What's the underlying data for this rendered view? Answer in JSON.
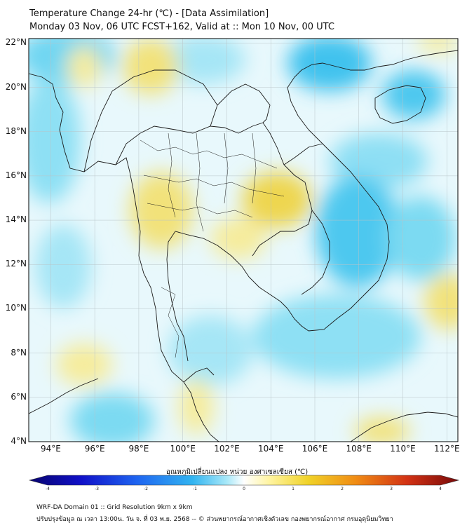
{
  "title_line1": "Temperature Change 24-hr (℃) - [Data Assimilation]",
  "title_line2": "Monday 03 Nov, 06 UTC FCST+162, Valid at :: Mon 10 Nov, 00 UTC",
  "map": {
    "lat_labels": [
      "22°N",
      "20°N",
      "18°N",
      "16°N",
      "14°N",
      "12°N",
      "10°N",
      "8°N",
      "6°N",
      "4°N"
    ],
    "lon_labels": [
      "94°E",
      "96°E",
      "98°E",
      "100°E",
      "102°E",
      "104°E",
      "106°E",
      "108°E",
      "110°E",
      "112°E"
    ],
    "extent": {
      "lon_min": 93.0,
      "lon_max": 112.5,
      "lat_min": 4.0,
      "lat_max": 22.2
    }
  },
  "colorbar": {
    "label": "อุณหภูมิเปลี่ยนแปลง หน่วย องศาเซลเซียส (℃)",
    "ticks": [
      "-4",
      "-3",
      "-2",
      "-1",
      "0",
      "1",
      "2",
      "3",
      "4"
    ],
    "range": [
      -4,
      4
    ],
    "colors": [
      "#08046e",
      "#1010c8",
      "#1e64f0",
      "#32b4f0",
      "#a8e8f8",
      "#ffffff",
      "#fff4a0",
      "#f0d228",
      "#f08c14",
      "#d23214",
      "#780a0a"
    ]
  },
  "footer_line1": "WRF-DA Domain 01 :: Grid Resolution 9km x 9km",
  "footer_line2": "ปรับปรุงข้อมูล ณ เวลา 13:00น. วัน จ. ที่ 03 พ.ย. 2568 -- © ส่วนพยากรณ์อากาศเชิงตัวเลข กองพยากรณ์อากาศ กรมอุตุนิยมวิทยา"
}
